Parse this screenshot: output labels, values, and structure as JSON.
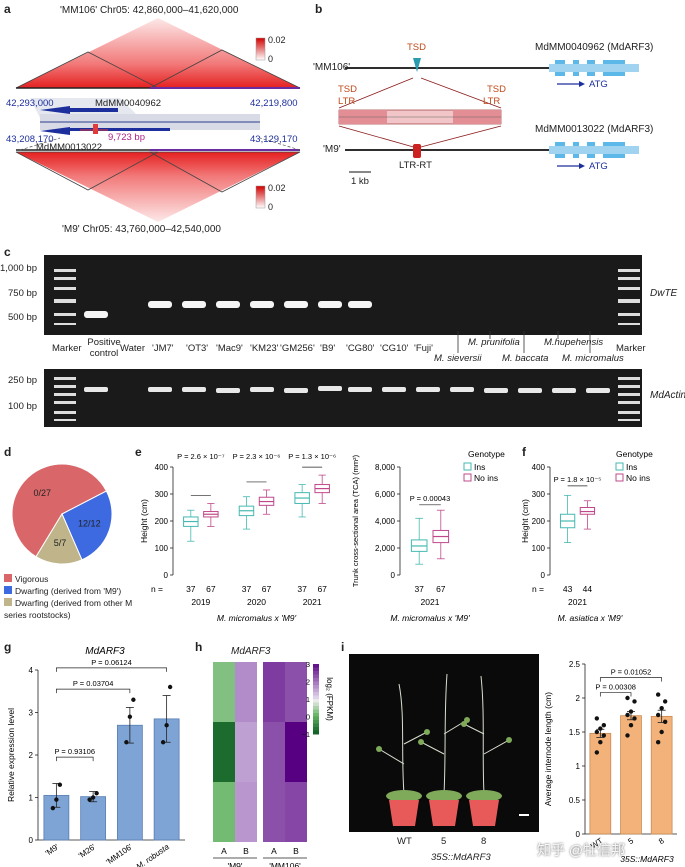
{
  "panels": {
    "a": {
      "label": "a",
      "top_title": "'MM106' Chr05: 42,860,000–41,620,000",
      "bottom_title": "'M9' Chr05: 43,760,000–42,540,000",
      "scale_top": {
        "max": "0.02",
        "min": "0"
      },
      "scale_bottom": {
        "max": "0.02",
        "min": "0"
      },
      "gene_top": "MdMM0040962",
      "gene_bottom": "MdMM0013022",
      "coord_top_left": "42,293,000",
      "coord_top_right": "42,219,800",
      "coord_bottom_left": "43,208,170",
      "coord_bottom_right": "43,129,170",
      "insert_size": "9,723 bp"
    },
    "b": {
      "label": "b",
      "line1_name": "'MM106'",
      "line2_name": "'M9'",
      "tsd": "TSD",
      "ltr": "LTR",
      "ltr_rt": "LTR-RT",
      "gene1": "MdMM0040962 (MdARF3)",
      "gene2": "MdMM0013022 (MdARF3)",
      "atg": "ATG",
      "scale": "1 kb"
    },
    "c": {
      "label": "c",
      "ladder_top": [
        "1,000 bp",
        "750 bp",
        "500 bp"
      ],
      "ladder_bottom": [
        "250 bp",
        "100 bp"
      ],
      "gene_top": "DwTE",
      "gene_bottom": "MdActin",
      "lanes": [
        "Marker",
        "Positive control",
        "Water",
        "'JM7'",
        "'OT3'",
        "'Mac9'",
        "'KM23'",
        "'GM256'",
        "'B9'",
        "'CG80'",
        "'CG10'",
        "'Fuji'"
      ],
      "species": [
        "M. sieversii",
        "M. prunifolia",
        "M. baccata",
        "M.hupehensis",
        "M. micromalus"
      ],
      "marker_right": "Marker"
    },
    "d": {
      "label": "d",
      "legend": [
        "Vigorous",
        "Dwarfing (derived from 'M9')",
        "Dwarfing (derived from other M series rootstocks)"
      ],
      "colors": [
        "#d9676a",
        "#3d6ae0",
        "#bfb48a"
      ]
    },
    "e": {
      "label": "e",
      "ylabel_left": "Height (cm)",
      "ylabel_right": "Trunk cross-sectional area (TCA) (mm²)",
      "xlabel_left": "M. micromalus x 'M9'",
      "xlabel_right": "M. micromalus x 'M9'",
      "years": [
        "2019",
        "2020",
        "2021"
      ],
      "year_right": "2021",
      "n_label": "n =",
      "n_values": [
        "37",
        "67",
        "37",
        "67",
        "37",
        "67"
      ],
      "n_values_right": [
        "37",
        "67"
      ],
      "pvalues": [
        "P = 2.6 × 10⁻⁷",
        "P = 2.3 × 10⁻⁶",
        "P = 1.3 × 10⁻⁶"
      ],
      "pvalue_right": "P = 0.00043",
      "legend_title": "Genotype",
      "legend": [
        "Ins",
        "No ins"
      ]
    },
    "f": {
      "label": "f",
      "ylabel": "Height (cm)",
      "xlabel": "M. asiatica x 'M9'",
      "year": "2021",
      "n_label": "n =",
      "n_values": [
        "43",
        "44"
      ],
      "pvalue": "P = 1.8 × 10⁻⁵",
      "legend_title": "Genotype",
      "legend": [
        "Ins",
        "No ins"
      ]
    },
    "g": {
      "label": "g",
      "title": "MdARF3",
      "ylabel": "Relative expression level",
      "pvalues": [
        "P = 0.93106",
        "P = 0.03704",
        "P = 0.06124"
      ]
    },
    "h": {
      "label": "h",
      "title": "MdARF3",
      "cols": [
        "A",
        "B",
        "A",
        "B"
      ],
      "groups": [
        "'M9'",
        "'MM106'"
      ],
      "scale_label": "log₂ (FPKM)",
      "scale_ticks": [
        "3",
        "2",
        "1",
        "0",
        "−1"
      ]
    },
    "i": {
      "label": "i",
      "photo_labels": [
        "WT",
        "5",
        "8"
      ],
      "construct": "35S::MdARF3",
      "ylabel": "Average internode length (cm)",
      "pvalues": [
        "P = 0.00308",
        "P = 0.01052"
      ],
      "watermark": "知乎 @牡信邦"
    }
  },
  "chart_data": [
    {
      "type": "pie",
      "panel": "d",
      "labels": [
        "Vigorous",
        "Dwarfing (derived from 'M9')",
        "Dwarfing (derived from other M series rootstocks)"
      ],
      "values": [
        27,
        12,
        7
      ],
      "slice_labels": [
        "0/27",
        "12/12",
        "5/7"
      ]
    },
    {
      "type": "box",
      "panel": "e-left",
      "ylabel": "Height (cm)",
      "ylim": [
        0,
        400
      ],
      "yticks": [
        0,
        100,
        200,
        300,
        400
      ],
      "series": [
        {
          "name": "Ins",
          "boxes": [
            [
              125,
              180,
              198,
              215,
              240
            ],
            [
              170,
              220,
              238,
              255,
              290
            ],
            [
              215,
              265,
              285,
              305,
              335
            ]
          ]
        },
        {
          "name": "No ins",
          "boxes": [
            [
              180,
              215,
              225,
              235,
              265
            ],
            [
              225,
              258,
              272,
              288,
              315
            ],
            [
              265,
              305,
              320,
              335,
              370
            ]
          ]
        }
      ],
      "categories": [
        "2019",
        "2020",
        "2021"
      ]
    },
    {
      "type": "box",
      "panel": "e-right",
      "ylabel": "Trunk cross-sectional area (TCA) (mm²)",
      "ylim": [
        0,
        8000
      ],
      "yticks": [
        0,
        2000,
        4000,
        6000,
        8000
      ],
      "series": [
        {
          "name": "Ins",
          "boxes": [
            [
              800,
              1750,
              2150,
              2600,
              4200
            ]
          ]
        },
        {
          "name": "No ins",
          "boxes": [
            [
              1200,
              2400,
              2850,
              3300,
              4800
            ]
          ]
        }
      ],
      "categories": [
        "2021"
      ]
    },
    {
      "type": "box",
      "panel": "f",
      "ylabel": "Height (cm)",
      "ylim": [
        0,
        400
      ],
      "yticks": [
        0,
        100,
        200,
        300,
        400
      ],
      "series": [
        {
          "name": "Ins",
          "boxes": [
            [
              120,
              175,
              200,
              225,
              295
            ]
          ]
        },
        {
          "name": "No ins",
          "boxes": [
            [
              170,
              225,
              235,
              250,
              275
            ]
          ]
        }
      ],
      "categories": [
        "2021"
      ]
    },
    {
      "type": "bar",
      "panel": "g",
      "categories": [
        "'M9'",
        "'M26'",
        "'MM106'",
        "M. robusta"
      ],
      "values": [
        1.05,
        1.02,
        2.7,
        2.85
      ],
      "errors": [
        0.28,
        0.12,
        0.42,
        0.55
      ],
      "points": [
        [
          0.75,
          0.95,
          1.3
        ],
        [
          0.95,
          1.0,
          1.1
        ],
        [
          2.3,
          2.9,
          3.3
        ],
        [
          2.3,
          2.7,
          3.6
        ]
      ],
      "ylabel": "Relative expression level",
      "ylim": [
        0,
        4
      ],
      "yticks": [
        0,
        1,
        2,
        3,
        4
      ]
    },
    {
      "type": "heatmap",
      "panel": "h",
      "columns": [
        "A",
        "B",
        "A",
        "B"
      ],
      "values": [
        [
          0.2,
          1.8,
          2.6,
          2.4
        ],
        [
          -0.9,
          1.6,
          2.4,
          3.2
        ],
        [
          0.1,
          1.7,
          2.4,
          2.5
        ]
      ],
      "range": [
        -1,
        3
      ]
    },
    {
      "type": "bar",
      "panel": "i",
      "categories": [
        "WT",
        "5",
        "8"
      ],
      "values": [
        1.48,
        1.74,
        1.73
      ],
      "errors": [
        0.06,
        0.06,
        0.09
      ],
      "points": [
        [
          1.2,
          1.35,
          1.45,
          1.5,
          1.55,
          1.6,
          1.7
        ],
        [
          1.45,
          1.6,
          1.7,
          1.75,
          1.8,
          1.95,
          2.0
        ],
        [
          1.35,
          1.5,
          1.65,
          1.75,
          1.85,
          1.95,
          2.05
        ]
      ],
      "ylabel": "Average internode length (cm)",
      "ylim": [
        0,
        2.5
      ],
      "yticks": [
        0,
        0.5,
        1.0,
        1.5,
        2.0,
        2.5
      ]
    }
  ]
}
